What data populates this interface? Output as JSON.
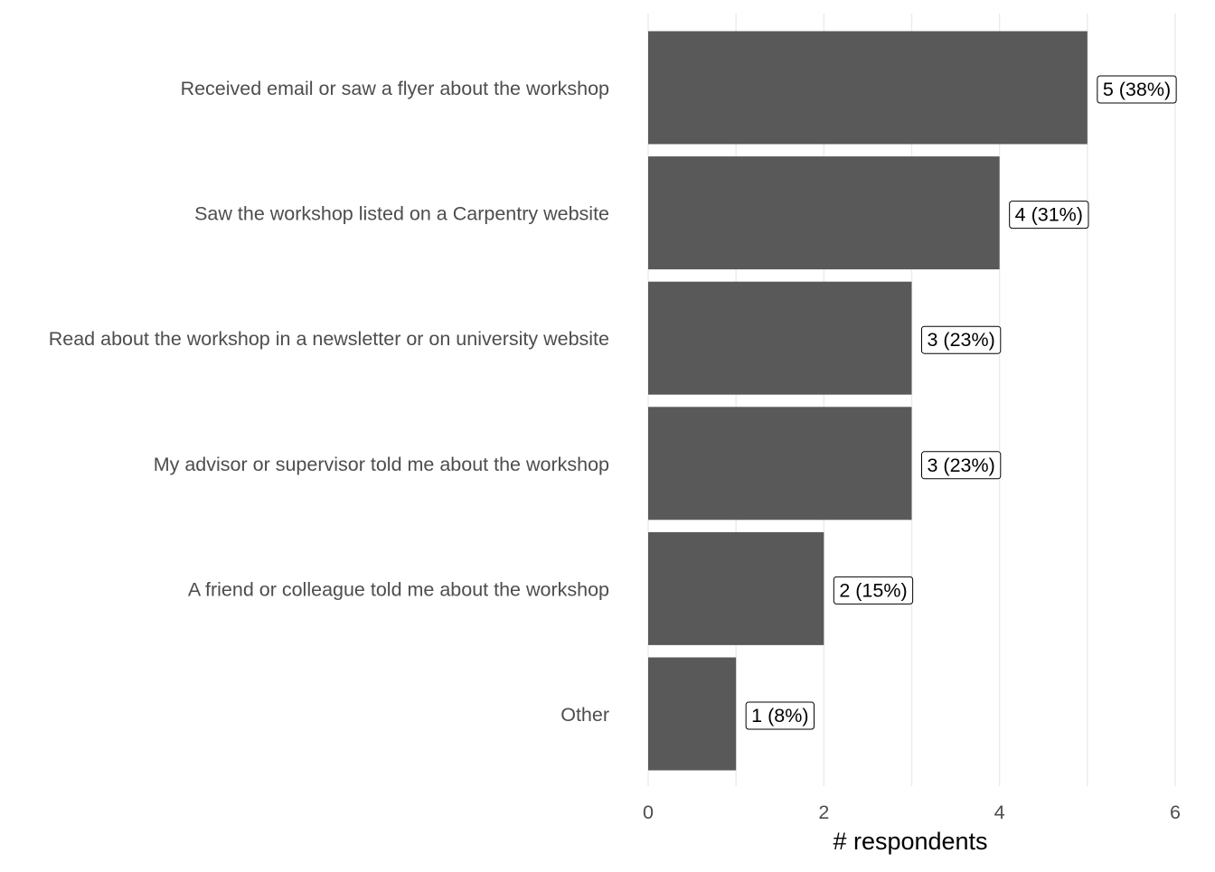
{
  "chart_data": {
    "type": "bar",
    "orientation": "horizontal",
    "categories": [
      "Received email or saw a flyer about the workshop",
      "Saw the workshop listed on a Carpentry website",
      "Read about the workshop in a newsletter or on university website",
      "My advisor or supervisor told me about the workshop",
      "A friend or colleague told me about the workshop",
      "Other"
    ],
    "values": [
      5,
      4,
      3,
      3,
      2,
      1
    ],
    "value_labels": [
      "5 (38%)",
      "4 (31%)",
      "3 (23%)",
      "3 (23%)",
      "2 (15%)",
      "1 (8%)"
    ],
    "title": "",
    "xlabel": "# respondents",
    "ylabel": "",
    "xlim": [
      0,
      6
    ],
    "x_ticks": [
      "0",
      "2",
      "4",
      "6"
    ],
    "grid": "vertical major",
    "legend": "none",
    "bar_color": "#595959"
  }
}
